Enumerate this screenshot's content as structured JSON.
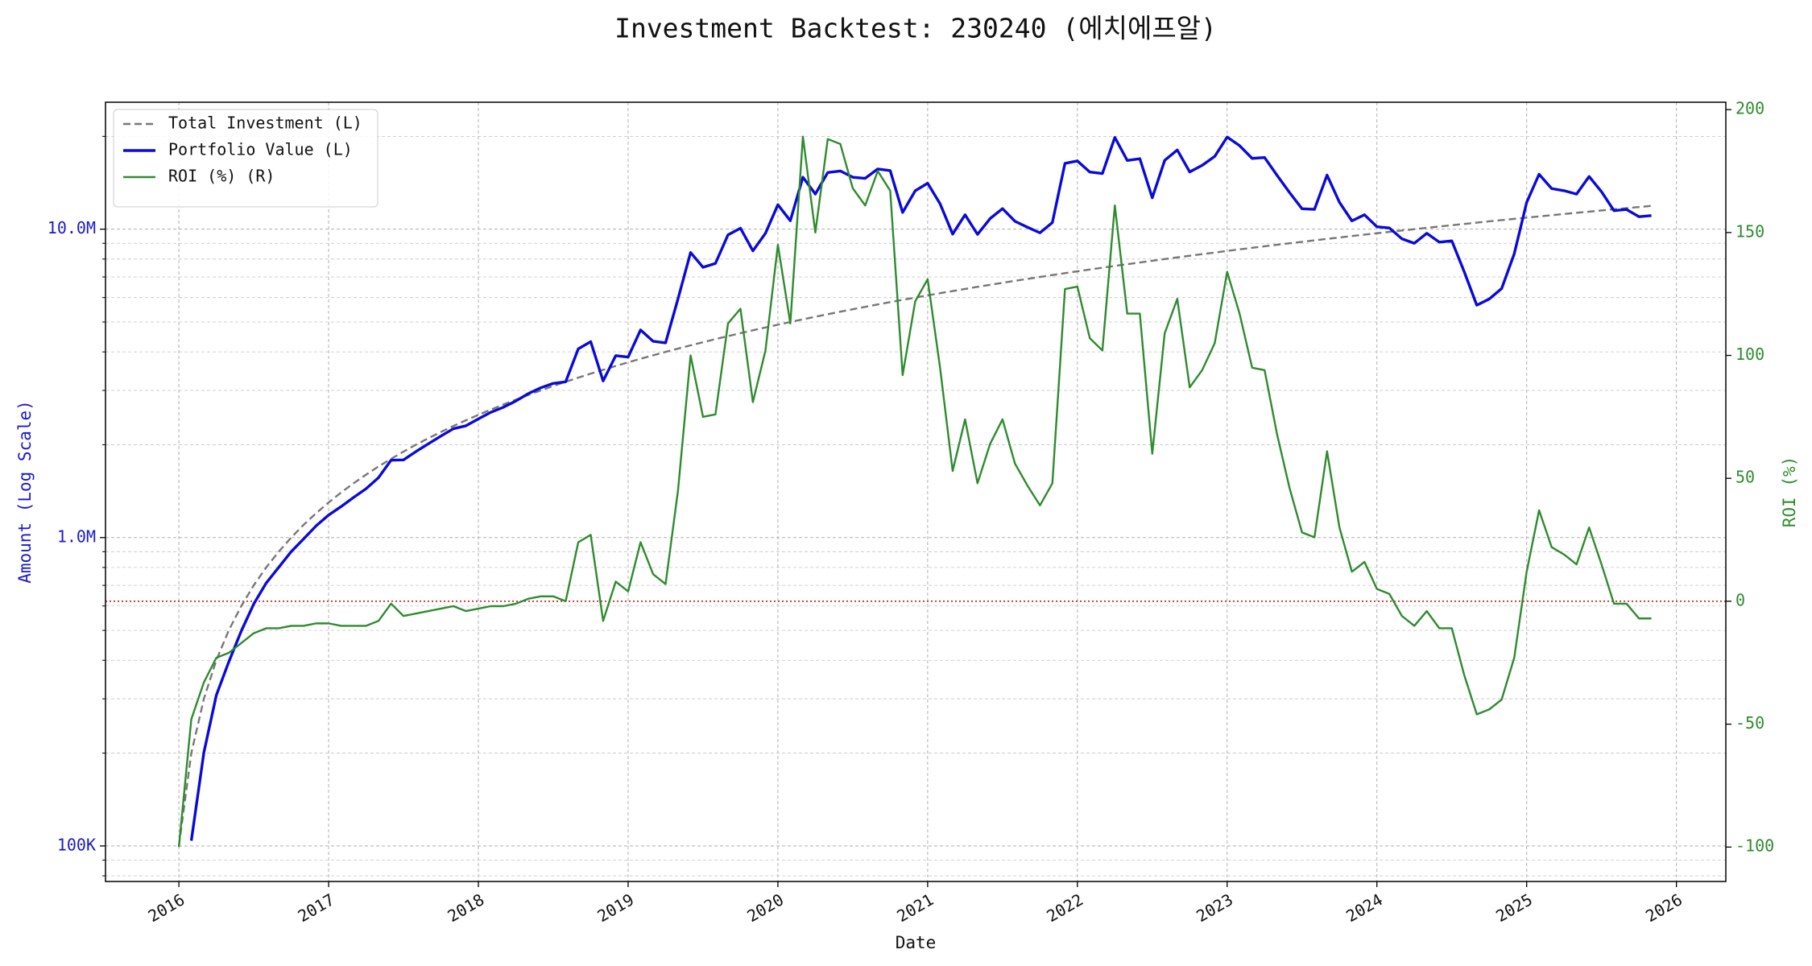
{
  "chart_data": {
    "type": "line",
    "title": "Investment Backtest: 230240 (에치에프알)",
    "xlabel": "Date",
    "ylabel": "Amount (Log Scale)",
    "y2label": "ROI (%)",
    "x": [
      2016,
      2016.083,
      2016.167,
      2016.25,
      2016.333,
      2016.417,
      2016.5,
      2016.583,
      2016.667,
      2016.75,
      2016.833,
      2016.917,
      2017,
      2017.083,
      2017.167,
      2017.25,
      2017.333,
      2017.417,
      2017.5,
      2017.583,
      2017.667,
      2017.75,
      2017.833,
      2017.917,
      2018,
      2018.083,
      2018.167,
      2018.25,
      2018.333,
      2018.417,
      2018.5,
      2018.583,
      2018.667,
      2018.75,
      2018.833,
      2018.917,
      2019,
      2019.083,
      2019.167,
      2019.25,
      2019.333,
      2019.417,
      2019.5,
      2019.583,
      2019.667,
      2019.75,
      2019.833,
      2019.917,
      2020,
      2020.083,
      2020.167,
      2020.25,
      2020.333,
      2020.417,
      2020.5,
      2020.583,
      2020.667,
      2020.75,
      2020.833,
      2020.917,
      2021,
      2021.083,
      2021.167,
      2021.25,
      2021.333,
      2021.417,
      2021.5,
      2021.583,
      2021.667,
      2021.75,
      2021.833,
      2021.917,
      2022,
      2022.083,
      2022.167,
      2022.25,
      2022.333,
      2022.417,
      2022.5,
      2022.583,
      2022.667,
      2022.75,
      2022.833,
      2022.917,
      2023,
      2023.083,
      2023.167,
      2023.25,
      2023.333,
      2023.417,
      2023.5,
      2023.583,
      2023.667,
      2023.75,
      2023.833,
      2023.917,
      2024,
      2024.083,
      2024.167,
      2024.25,
      2024.333,
      2024.417,
      2024.5,
      2024.583,
      2024.667,
      2024.75,
      2024.833,
      2024.917,
      2025,
      2025.083,
      2025.167,
      2025.25,
      2025.333,
      2025.417,
      2025.5,
      2025.583,
      2025.667,
      2025.75,
      2025.833
    ],
    "xlim": [
      2015.51,
      2026.33
    ],
    "xticks": [
      2016,
      2017,
      2018,
      2019,
      2020,
      2021,
      2022,
      2023,
      2024,
      2025,
      2026
    ],
    "yscale": "log",
    "ylim": [
      76700,
      25800000
    ],
    "yticks": [
      {
        "value": 100000,
        "label": "100K"
      },
      {
        "value": 1000000,
        "label": "1.0M"
      },
      {
        "value": 10000000,
        "label": "10.0M"
      }
    ],
    "yminorticks": [
      80000,
      90000,
      200000,
      300000,
      400000,
      500000,
      600000,
      700000,
      800000,
      900000,
      2000000,
      3000000,
      4000000,
      5000000,
      6000000,
      7000000,
      8000000,
      9000000,
      20000000
    ],
    "y2lim": [
      -114,
      203
    ],
    "y2ticks": [
      -100,
      -50,
      0,
      50,
      100,
      150,
      200
    ],
    "grid": true,
    "legend": "upper left",
    "reference_line": {
      "axis": "y2",
      "value": 0,
      "color": "#cc0000"
    },
    "series": [
      {
        "name": "Total Investment (L)",
        "color": "#777777",
        "dash": "dashed",
        "values": [
          100000,
          200000,
          300000,
          400000,
          500000,
          600000,
          700000,
          800000,
          900000,
          1000000,
          1100000,
          1200000,
          1300000,
          1400000,
          1500000,
          1600000,
          1700000,
          1800000,
          1900000,
          2000000,
          2100000,
          2200000,
          2300000,
          2400000,
          2500000,
          2600000,
          2700000,
          2800000,
          2900000,
          3000000,
          3100000,
          3200000,
          3300000,
          3400000,
          3500000,
          3600000,
          3700000,
          3800000,
          3900000,
          4000000,
          4100000,
          4200000,
          4300000,
          4400000,
          4500000,
          4600000,
          4700000,
          4800000,
          4900000,
          5000000,
          5100000,
          5200000,
          5300000,
          5400000,
          5500000,
          5600000,
          5700000,
          5800000,
          5900000,
          6000000,
          6100000,
          6200000,
          6300000,
          6400000,
          6500000,
          6600000,
          6700000,
          6800000,
          6900000,
          7000000,
          7100000,
          7200000,
          7300000,
          7400000,
          7500000,
          7600000,
          7700000,
          7800000,
          7900000,
          8000000,
          8100000,
          8200000,
          8300000,
          8400000,
          8500000,
          8600000,
          8700000,
          8800000,
          8900000,
          9000000,
          9100000,
          9200000,
          9300000,
          9400000,
          9500000,
          9600000,
          9700000,
          9800000,
          9900000,
          10000000,
          10100000,
          10200000,
          10300000,
          10400000,
          10500000,
          10600000,
          10700000,
          10800000,
          10900000,
          11000000,
          11100000,
          11200000,
          11300000,
          11400000,
          11500000,
          11600000,
          11700000,
          11800000,
          11900000
        ]
      },
      {
        "name": "Portfolio Value (L)",
        "color": "#0a0ad8",
        "values": [
          null,
          104000,
          201000,
          308000,
          395000,
          498000,
          609000,
          712000,
          801000,
          900000,
          990000,
          1092000,
          1183000,
          1260000,
          1350000,
          1440000,
          1564000,
          1782000,
          1786000,
          1900000,
          2016000,
          2134000,
          2254000,
          2304000,
          2425000,
          2548000,
          2646000,
          2772000,
          2929000,
          3060000,
          3162000,
          3200000,
          4092000,
          4318000,
          3220000,
          3888000,
          3848000,
          4712000,
          4329000,
          4280000,
          5945000,
          8400000,
          7525000,
          7744000,
          9585000,
          10074000,
          8507000,
          9696000,
          12005000,
          10650000,
          14739000,
          13000000,
          15264000,
          15444000,
          14740000,
          14616000,
          15675000,
          15486000,
          11328000,
          13320000,
          14091000,
          12090000,
          9639000,
          11136000,
          9620000,
          10824000,
          11658000,
          10608000,
          10143000,
          9730000,
          10508000,
          16344000,
          16644000,
          15318000,
          15150000,
          19836000,
          16709000,
          16926000,
          12640000,
          16720000,
          18063000,
          15334000,
          16102000,
          17220000,
          19890000,
          18662000,
          16965000,
          17072000,
          14952000,
          13140000,
          11648000,
          11592000,
          14973000,
          12220000,
          10640000,
          11136000,
          10185000,
          10094000,
          9306000,
          9000000,
          9696000,
          9078000,
          9167000,
          7280000,
          5670000,
          5936000,
          6420000,
          8316000,
          12208000,
          15070000,
          13542000,
          13328000,
          12995000,
          14820000,
          13225000,
          11484000,
          11583000,
          10974000,
          11067000
        ]
      },
      {
        "name": "ROI (%) (R)",
        "color": "#2e8b2e",
        "axis": "y2",
        "values": [
          -100,
          -48,
          -33,
          -23,
          -21,
          -17,
          -13,
          -11,
          -11,
          -10,
          -10,
          -9,
          -9,
          -10,
          -10,
          -10,
          -8,
          -1,
          -6,
          -5,
          -4,
          -3,
          -2,
          -4,
          -3,
          -2,
          -2,
          -1,
          1,
          2,
          2,
          0,
          24,
          27,
          -8,
          8,
          4,
          24,
          11,
          7,
          45,
          100,
          75,
          76,
          113,
          119,
          81,
          102,
          145,
          113,
          189,
          150,
          188,
          186,
          168,
          161,
          175,
          167,
          92,
          122,
          131,
          95,
          53,
          74,
          48,
          64,
          74,
          56,
          47,
          39,
          48,
          127,
          128,
          107,
          102,
          161,
          117,
          117,
          60,
          109,
          123,
          87,
          94,
          105,
          134,
          117,
          95,
          94,
          68,
          46,
          28,
          26,
          61,
          30,
          12,
          16,
          5,
          3,
          -6,
          -10,
          -4,
          -11,
          -11,
          -30,
          -46,
          -44,
          -40,
          -23,
          12,
          37,
          22,
          19,
          15,
          30,
          15,
          -1,
          -1,
          -7,
          -7
        ]
      }
    ]
  }
}
